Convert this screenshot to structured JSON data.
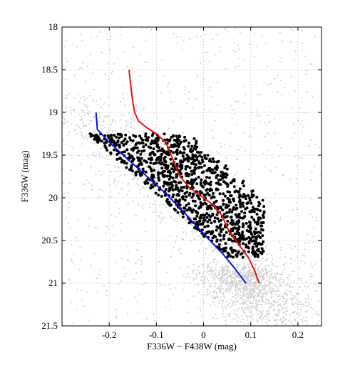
{
  "chart_data": {
    "type": "scatter",
    "title": "",
    "xlabel": "F336W − F438W (mag)",
    "ylabel": "F336W (mag)",
    "xlim": [
      -0.3,
      0.25
    ],
    "ylim": [
      18,
      21.5
    ],
    "y_inverted": true,
    "grid": true,
    "x_ticks": [
      "-0.2",
      "-0.1",
      "0",
      "0.1",
      "0.2"
    ],
    "x_tick_values": [
      -0.2,
      -0.1,
      0,
      0.1,
      0.2
    ],
    "y_ticks": [
      "18",
      "18.5",
      "19",
      "19.5",
      "20",
      "20.5",
      "21",
      "21.5"
    ],
    "y_tick_values": [
      18,
      18.5,
      19,
      19.5,
      20,
      20.5,
      21,
      21.5
    ],
    "series": [
      {
        "kind": "scatter",
        "color": "#cfcfcf",
        "description_points": "field stars",
        "points_sampled": true
      },
      {
        "kind": "scatter",
        "color": "#000000",
        "description_points": "selected stars",
        "points_sampled": true
      },
      {
        "kind": "line",
        "color": "#e81313",
        "points": [
          [
            -0.158,
            18.5
          ],
          [
            -0.154,
            18.7
          ],
          [
            -0.15,
            18.88
          ],
          [
            -0.146,
            19.0
          ],
          [
            -0.138,
            19.1
          ],
          [
            -0.12,
            19.18
          ],
          [
            -0.1,
            19.25
          ],
          [
            -0.08,
            19.35
          ],
          [
            -0.065,
            19.55
          ],
          [
            -0.05,
            19.75
          ],
          [
            -0.03,
            19.88
          ],
          [
            -0.005,
            19.98
          ],
          [
            0.02,
            20.08
          ],
          [
            0.038,
            20.2
          ],
          [
            0.055,
            20.4
          ],
          [
            0.075,
            20.55
          ],
          [
            0.095,
            20.7
          ],
          [
            0.108,
            20.85
          ],
          [
            0.118,
            21.0
          ]
        ]
      },
      {
        "kind": "line",
        "color": "#1010e0",
        "points": [
          [
            -0.228,
            19.0
          ],
          [
            -0.225,
            19.2
          ],
          [
            -0.2,
            19.35
          ],
          [
            -0.17,
            19.5
          ],
          [
            -0.14,
            19.65
          ],
          [
            -0.11,
            19.8
          ],
          [
            -0.08,
            19.95
          ],
          [
            -0.05,
            20.12
          ],
          [
            -0.02,
            20.3
          ],
          [
            0.01,
            20.48
          ],
          [
            0.04,
            20.65
          ],
          [
            0.065,
            20.82
          ],
          [
            0.09,
            21.0
          ]
        ]
      }
    ]
  }
}
